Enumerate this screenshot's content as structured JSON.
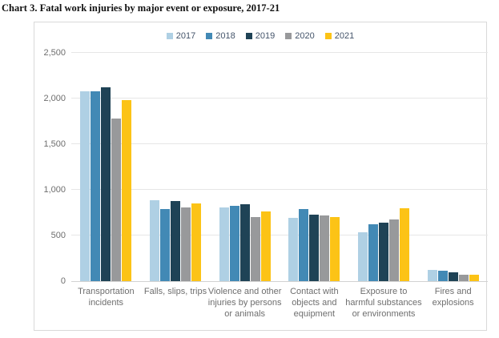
{
  "page": {
    "title": "Chart 3. Fatal work injuries by major event or exposure, 2017-21"
  },
  "chart_data": {
    "type": "bar",
    "title": "Chart 3. Fatal work injuries by major event or exposure, 2017-21",
    "categories": [
      "Transportation incidents",
      "Falls, slips, trips",
      "Violence and other injuries by persons or animals",
      "Contact with objects and equipment",
      "Exposure to harmful substances or environments",
      "Fires and explosions"
    ],
    "series": [
      {
        "name": "2017",
        "color": "#afd0e4",
        "values": [
          2077,
          887,
          807,
          695,
          531,
          123
        ]
      },
      {
        "name": "2018",
        "color": "#4289b5",
        "values": [
          2080,
          791,
          828,
          786,
          621,
          115
        ]
      },
      {
        "name": "2019",
        "color": "#1f4356",
        "values": [
          2122,
          880,
          841,
          732,
          642,
          99
        ]
      },
      {
        "name": "2020",
        "color": "#98999b",
        "values": [
          1778,
          805,
          705,
          716,
          672,
          73
        ]
      },
      {
        "name": "2021",
        "color": "#fcc316",
        "values": [
          1982,
          850,
          761,
          705,
          798,
          72
        ]
      }
    ],
    "xlabel": "",
    "ylabel": "",
    "ylim": [
      0,
      2500
    ],
    "ytick_step": 500,
    "ytick_labels": [
      "0",
      "500",
      "1,000",
      "1,500",
      "2,000",
      "2,500"
    ],
    "grid": "horizontal",
    "legend_position": "top-center"
  }
}
